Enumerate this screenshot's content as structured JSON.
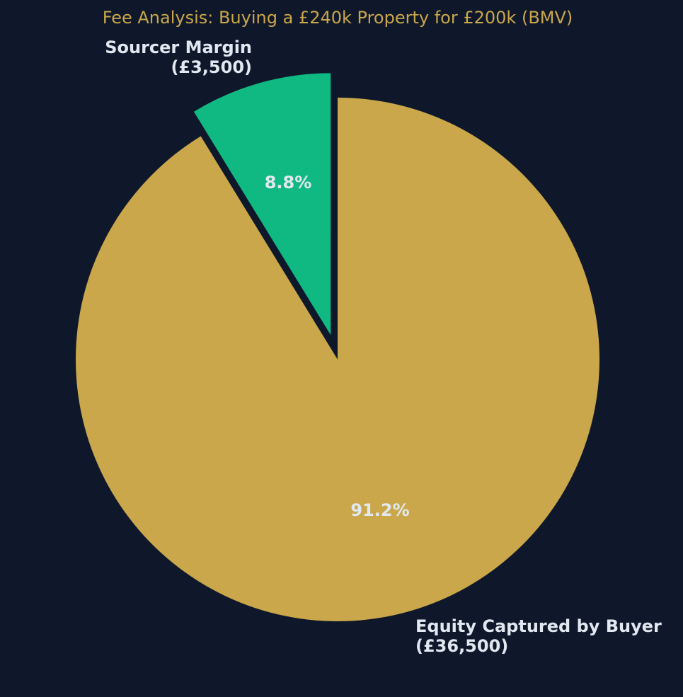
{
  "chart_data": {
    "type": "pie",
    "title": "Fee Analysis: Buying a £240k Property for £200k (BMV)",
    "slices": [
      {
        "label_line1": "Sourcer Margin",
        "label_line2": "(£3,500)",
        "value": 3500,
        "percent_label": "8.8%",
        "color": "#10b981",
        "exploded": true
      },
      {
        "label_line1": "Equity Captured by Buyer",
        "label_line2": "(£36,500)",
        "value": 36500,
        "percent_label": "91.2%",
        "color": "#c9a74a",
        "exploded": false
      }
    ],
    "start_angle": "top",
    "direction": "counterclockwise"
  },
  "colors": {
    "background": "#0f172a",
    "title": "#c9a74a",
    "label_text": "#e2e8f0"
  }
}
